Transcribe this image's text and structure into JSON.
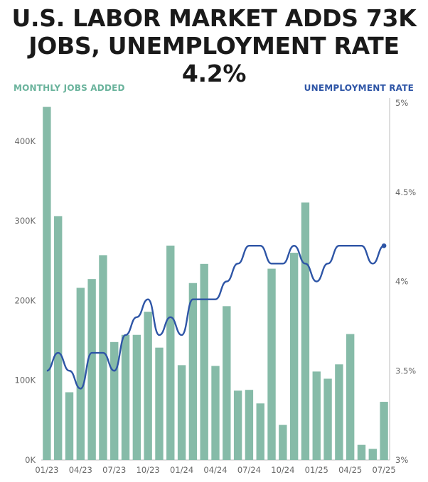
{
  "title_line1": "U.S. LABOR MARKET ADDS 73K",
  "title_line2": "JOBS, UNEMPLOYMENT RATE 4.2%",
  "chart_data": {
    "type": "bar",
    "legend_left": "MONTHLY JOBS ADDED",
    "legend_right": "UNEMPLOYMENT RATE",
    "months": [
      "01/23",
      "02/23",
      "03/23",
      "04/23",
      "05/23",
      "06/23",
      "07/23",
      "08/23",
      "09/23",
      "10/23",
      "11/23",
      "12/23",
      "01/24",
      "02/24",
      "03/24",
      "04/24",
      "05/24",
      "06/24",
      "07/24",
      "08/24",
      "09/24",
      "10/24",
      "11/24",
      "12/24",
      "01/25",
      "02/25",
      "03/25",
      "04/25",
      "05/25",
      "06/25",
      "07/25"
    ],
    "x_tick_labels": [
      "01/23",
      "04/23",
      "07/23",
      "10/23",
      "01/24",
      "04/24",
      "07/24",
      "10/24",
      "01/25",
      "04/25",
      "07/25"
    ],
    "jobs_added": [
      443000,
      306000,
      85000,
      216000,
      227000,
      257000,
      148000,
      157000,
      157000,
      186000,
      141000,
      269000,
      119000,
      222000,
      246000,
      118000,
      193000,
      87000,
      88000,
      71000,
      240000,
      44000,
      260000,
      323000,
      111000,
      102000,
      120000,
      158000,
      19000,
      14000,
      73000
    ],
    "unemployment_rate": [
      3.5,
      3.6,
      3.5,
      3.4,
      3.6,
      3.6,
      3.5,
      3.7,
      3.8,
      3.9,
      3.7,
      3.8,
      3.7,
      3.9,
      3.9,
      3.9,
      4.0,
      4.1,
      4.2,
      4.2,
      4.1,
      4.1,
      4.2,
      4.1,
      4.0,
      4.1,
      4.2,
      4.2,
      4.2,
      4.1,
      4.2
    ],
    "y_left_ticks": [
      {
        "value": 0,
        "label": "0K"
      },
      {
        "value": 100000,
        "label": "100K"
      },
      {
        "value": 200000,
        "label": "200K"
      },
      {
        "value": 300000,
        "label": "300K"
      },
      {
        "value": 400000,
        "label": "400K"
      }
    ],
    "y_right_ticks": [
      {
        "value": 3.0,
        "label": "3%"
      },
      {
        "value": 3.5,
        "label": "3.5%"
      },
      {
        "value": 4.0,
        "label": "4%"
      },
      {
        "value": 4.5,
        "label": "4.5%"
      },
      {
        "value": 5.0,
        "label": "5%"
      }
    ],
    "y_left_range": [
      0,
      448000
    ],
    "y_right_range": [
      3.0,
      5.0
    ],
    "bar_color": "#86bba8",
    "line_color": "#2e55a6",
    "grid": false
  }
}
